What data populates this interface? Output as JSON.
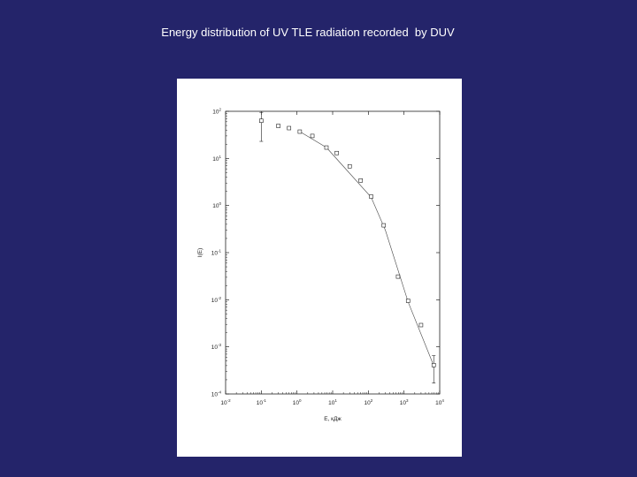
{
  "slide": {
    "title": "Energy distribution of UV TLE radiation recorded  by DUV",
    "background_color": "#24246a",
    "title_color": "#ffffff"
  },
  "chart_data": {
    "type": "scatter",
    "title": "",
    "xlabel": "E, кДж",
    "ylabel": "I(E)",
    "x_scale": "log",
    "y_scale": "log",
    "xlim": [
      0.01,
      10000
    ],
    "ylim": [
      0.0001,
      100
    ],
    "x_ticks": [
      {
        "value": 0.01,
        "mantissa": "10",
        "exp": "-2"
      },
      {
        "value": 0.1,
        "mantissa": "10",
        "exp": "-1"
      },
      {
        "value": 1,
        "mantissa": "10",
        "exp": "0"
      },
      {
        "value": 10,
        "mantissa": "10",
        "exp": "1"
      },
      {
        "value": 100,
        "mantissa": "10",
        "exp": "2"
      },
      {
        "value": 1000,
        "mantissa": "10",
        "exp": "3"
      },
      {
        "value": 10000,
        "mantissa": "10",
        "exp": "4"
      }
    ],
    "y_ticks": [
      {
        "value": 100,
        "mantissa": "10",
        "exp": "2"
      },
      {
        "value": 10,
        "mantissa": "10",
        "exp": "1"
      },
      {
        "value": 1,
        "mantissa": "10",
        "exp": "0"
      },
      {
        "value": 0.1,
        "mantissa": "10",
        "exp": "-1"
      },
      {
        "value": 0.01,
        "mantissa": "10",
        "exp": "-2"
      },
      {
        "value": 0.001,
        "mantissa": "10",
        "exp": "-3"
      },
      {
        "value": 0.0001,
        "mantissa": "10",
        "exp": "-4"
      }
    ],
    "grid": false,
    "series": [
      {
        "marker": "open-square",
        "points": [
          {
            "x": 0.1,
            "y": 63,
            "y_err_low": 23,
            "y_err_high": 95
          },
          {
            "x": 0.3,
            "y": 49
          },
          {
            "x": 0.6,
            "y": 44
          },
          {
            "x": 1.2,
            "y": 37
          },
          {
            "x": 2.7,
            "y": 30
          },
          {
            "x": 6.7,
            "y": 17
          },
          {
            "x": 13,
            "y": 13
          },
          {
            "x": 30,
            "y": 6.8
          },
          {
            "x": 61,
            "y": 3.4
          },
          {
            "x": 120,
            "y": 1.55
          },
          {
            "x": 270,
            "y": 0.38
          },
          {
            "x": 680,
            "y": 0.031
          },
          {
            "x": 1300,
            "y": 0.0095
          },
          {
            "x": 3000,
            "y": 0.0029
          },
          {
            "x": 6800,
            "y": 0.00041,
            "y_err_low": 0.00017,
            "y_err_high": 0.00065
          }
        ]
      }
    ],
    "fit_line": [
      {
        "x": 1.2,
        "y": 37
      },
      {
        "x": 6.7,
        "y": 17
      },
      {
        "x": 120,
        "y": 1.5
      },
      {
        "x": 300,
        "y": 0.3
      },
      {
        "x": 1300,
        "y": 0.009
      },
      {
        "x": 6800,
        "y": 0.0004
      }
    ],
    "colors": {
      "marker": "#222222",
      "axis": "#222222",
      "fit_line": "#444444"
    }
  }
}
